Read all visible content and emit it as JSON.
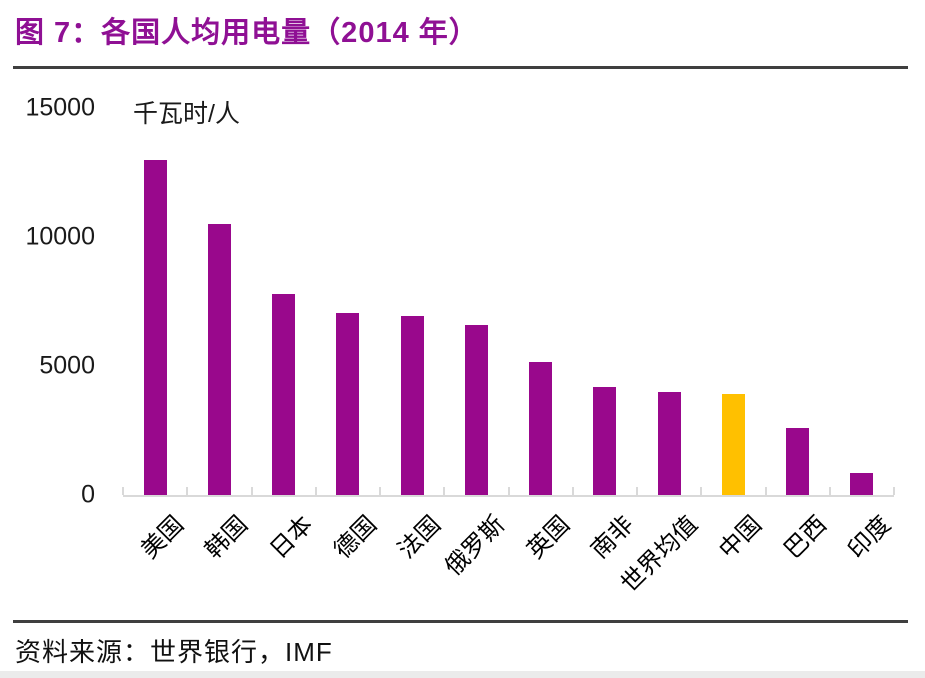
{
  "header": {
    "title": "图 7：各国人均用电量（2014 年）"
  },
  "footer": {
    "source": "资料来源：世界银行，IMF"
  },
  "chart_data": {
    "type": "bar",
    "title": "图 7：各国人均用电量（2014 年）",
    "unit_label": "千瓦时/人",
    "categories": [
      "美国",
      "韩国",
      "日本",
      "德国",
      "法国",
      "俄罗斯",
      "英国",
      "南非",
      "世界均值",
      "中国",
      "巴西",
      "印度"
    ],
    "values": [
      13000,
      10500,
      7800,
      7050,
      6950,
      6600,
      5150,
      4200,
      4000,
      3900,
      2600,
      850
    ],
    "highlight_category": "中国",
    "xlabel": "",
    "ylabel": "千瓦时/人",
    "ylim": [
      0,
      15000
    ],
    "yticks": [
      0,
      5000,
      10000,
      15000
    ],
    "grid": false,
    "legend": "none",
    "source": "资料来源：世界银行，IMF",
    "colors": {
      "bar": "#99088C",
      "highlight_bar": "#FFC000",
      "title": "#8F1094",
      "rule": "#3F3F3F",
      "axis_line": "#D9D9D9",
      "text": "#1A1A1A"
    }
  }
}
